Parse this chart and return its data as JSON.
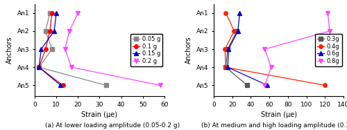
{
  "anchors": [
    "An1",
    "An2",
    "An3",
    "An4",
    "An5"
  ],
  "anchor_pos": [
    0,
    1,
    2,
    3,
    4
  ],
  "left": {
    "series": [
      {
        "label": "0.05 g",
        "color": "#888888",
        "marker": "s",
        "markersize": 4,
        "values": [
          7,
          5,
          8,
          2,
          33
        ]
      },
      {
        "label": "0.1 g",
        "color": "#ff0000",
        "marker": "o",
        "markersize": 4,
        "values": [
          8,
          7,
          5,
          2,
          13
        ]
      },
      {
        "label": "0.15 g",
        "color": "#0000cc",
        "marker": "^",
        "markersize": 4,
        "values": [
          10,
          9,
          3,
          2,
          12
        ]
      },
      {
        "label": "0.2 g",
        "color": "#ff44ff",
        "marker": "v",
        "markersize": 4,
        "values": [
          20,
          16,
          14,
          17,
          58
        ]
      }
    ],
    "xlabel": "Strain (μe)",
    "ylabel": "Anchors",
    "xlim": [
      0,
      60
    ],
    "xticks": [
      0,
      10,
      20,
      30,
      40,
      50,
      60
    ],
    "caption": "(a) At lower loading amplitude (0.05-0.2 g)"
  },
  "right": {
    "series": [
      {
        "label": "0.3g",
        "color": "#555555",
        "marker": "s",
        "markersize": 4,
        "values": [
          null,
          25,
          15,
          13,
          36
        ]
      },
      {
        "label": "0.4g",
        "color": "#ff2200",
        "marker": "o",
        "markersize": 4,
        "values": [
          13,
          22,
          12,
          13,
          120
        ]
      },
      {
        "label": "0.6g",
        "color": "#0000cc",
        "marker": "^",
        "markersize": 4,
        "values": [
          28,
          26,
          16,
          15,
          58
        ]
      },
      {
        "label": "0.8g",
        "color": "#ff44ff",
        "marker": "v",
        "markersize": 4,
        "values": [
          123,
          125,
          55,
          62,
          55
        ]
      }
    ],
    "xlabel": "Strain (μe)",
    "ylabel": "Anchors",
    "xlim": [
      0,
      140
    ],
    "xticks": [
      0,
      20,
      40,
      60,
      80,
      100,
      120,
      140
    ],
    "caption": "(b) At medium and high loading amplitude (0.3-0.8 g)"
  },
  "figsize": [
    5.0,
    1.88
  ],
  "dpi": 100
}
